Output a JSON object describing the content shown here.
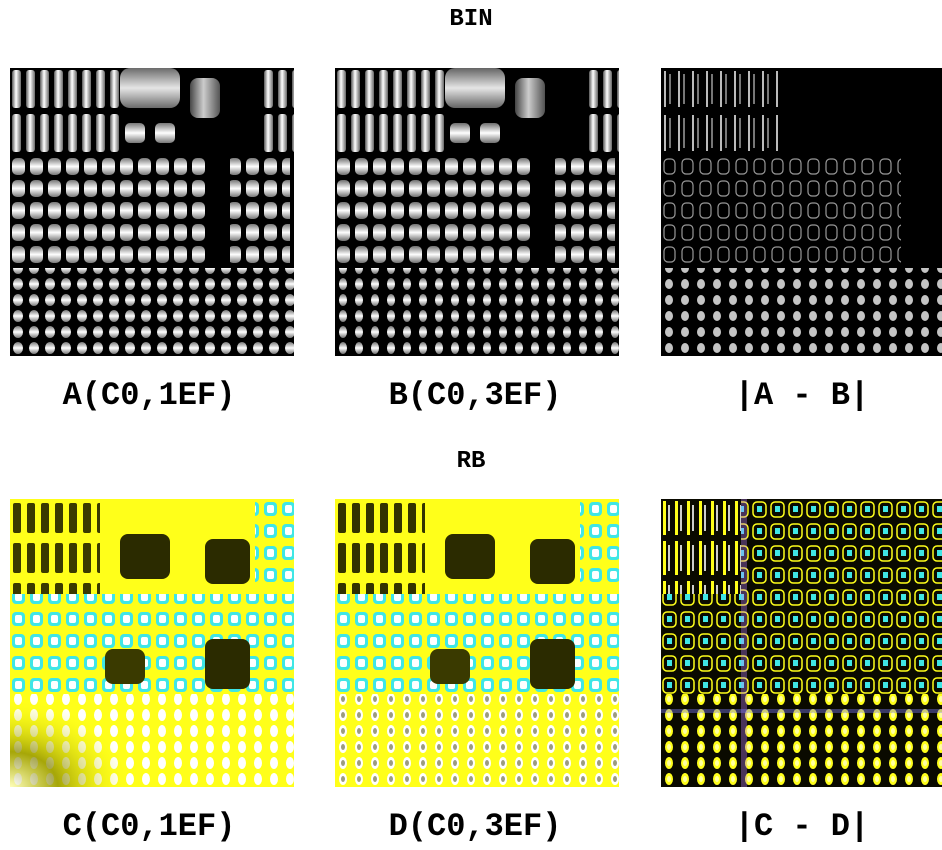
{
  "sections": [
    {
      "title": "BIN",
      "captions": [
        "A(C0,1EF)",
        "B(C0,3EF)",
        "|A - B|"
      ]
    },
    {
      "title": "RB",
      "captions": [
        "C(C0,1EF)",
        "D(C0,3EF)",
        "|C - D|"
      ]
    }
  ],
  "colors": {
    "bin_background": "#000000",
    "bin_foreground": "#f2f2f2",
    "rb_background": "#ffff1a",
    "rb_dark": "#2b2b00",
    "rb_accent": "#3fe6e6",
    "diff_dark": "#0a0a00"
  }
}
